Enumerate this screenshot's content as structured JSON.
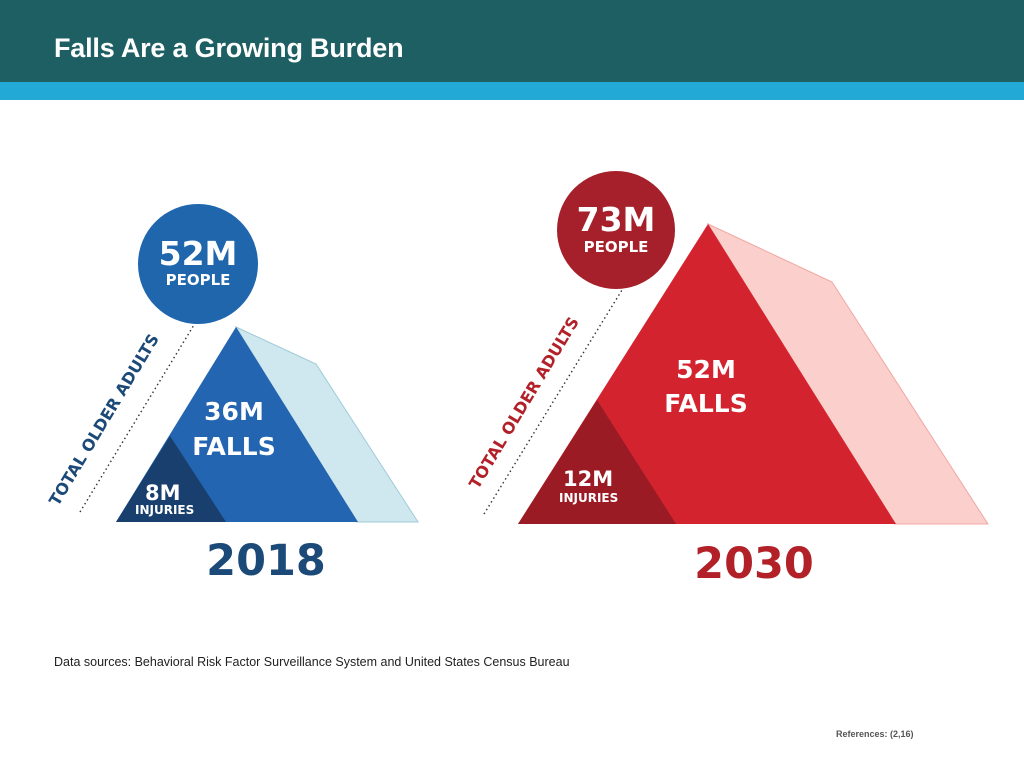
{
  "slide": {
    "title": "Falls Are a Growing Burden",
    "source": "Data sources: Behavioral Risk Factor Surveillance System and United States Census Bureau",
    "references": "References: (2,16)"
  },
  "colors": {
    "header": "#1e5f63",
    "stripe": "#22a9d6",
    "blue_circle": "#1f66ad",
    "blue_falls": "#2365b0",
    "blue_injuries": "#183f6d",
    "blue_shadow": "#cfe7ee",
    "blue_year": "#1c4a78",
    "red_circle": "#a5202a",
    "red_falls": "#d2232f",
    "red_injuries": "#9b1b24",
    "red_shadow": "#fbcfcb",
    "red_year": "#b22028"
  },
  "panels": {
    "y2018": {
      "year": "2018",
      "people": "52M",
      "people_label": "PEOPLE",
      "side_label": "TOTAL OLDER ADULTS",
      "falls": "36M",
      "falls_label": "FALLS",
      "injuries": "8M",
      "injuries_label": "INJURIES"
    },
    "y2030": {
      "year": "2030",
      "people": "73M",
      "people_label": "PEOPLE",
      "side_label": "TOTAL OLDER ADULTS",
      "falls": "52M",
      "falls_label": "FALLS",
      "injuries": "12M",
      "injuries_label": "INJURIES"
    }
  }
}
